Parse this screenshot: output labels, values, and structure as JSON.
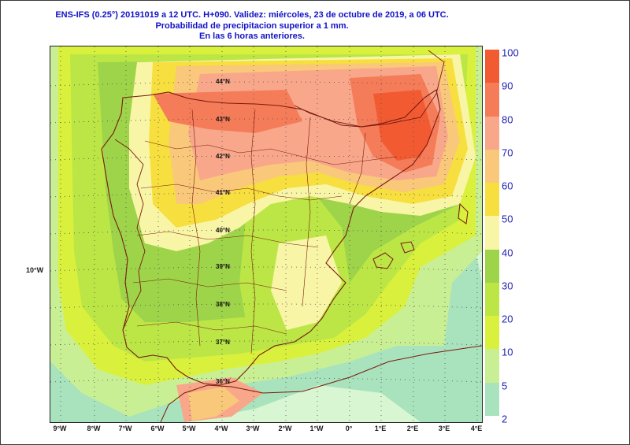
{
  "header": {
    "line1": "ENS-IFS (0.25°) 20191019 a 12 UTC.  H+090. Validez: miércoles, 23 de octubre de 2019,  a  06 UTC.",
    "line2": "Probabilidad de precipitacion superior a 1 mm.",
    "line3": "En las 6 horas anteriores."
  },
  "axes": {
    "longitude_ticks": [
      "9°W",
      "8°W",
      "7°W",
      "6°W",
      "5°W",
      "4°W",
      "3°W",
      "2°W",
      "1°W",
      "0°",
      "1°E",
      "2°E",
      "3°E",
      "4°E"
    ],
    "side_label": "10°W",
    "latitude_labels": [
      "44°N",
      "43°N",
      "42°N",
      "41°N",
      "40°N",
      "39°N",
      "38°N",
      "37°N",
      "36°N"
    ]
  },
  "legend": {
    "levels": [
      {
        "label": "100",
        "color": "#f25a32"
      },
      {
        "label": "90",
        "color": "#f57c58"
      },
      {
        "label": "80",
        "color": "#f8a78a"
      },
      {
        "label": "70",
        "color": "#f9c87a"
      },
      {
        "label": "60",
        "color": "#f6df3e"
      },
      {
        "label": "50",
        "color": "#f8f5a6"
      },
      {
        "label": "40",
        "color": "#9ed44a"
      },
      {
        "label": "30",
        "color": "#bbe645"
      },
      {
        "label": "20",
        "color": "#d9f03c"
      },
      {
        "label": "10",
        "color": "#c9ef95"
      },
      {
        "label": "5",
        "color": "#a9e3bd"
      },
      {
        "label": "2",
        "color": "#d8f6d2"
      }
    ]
  }
}
